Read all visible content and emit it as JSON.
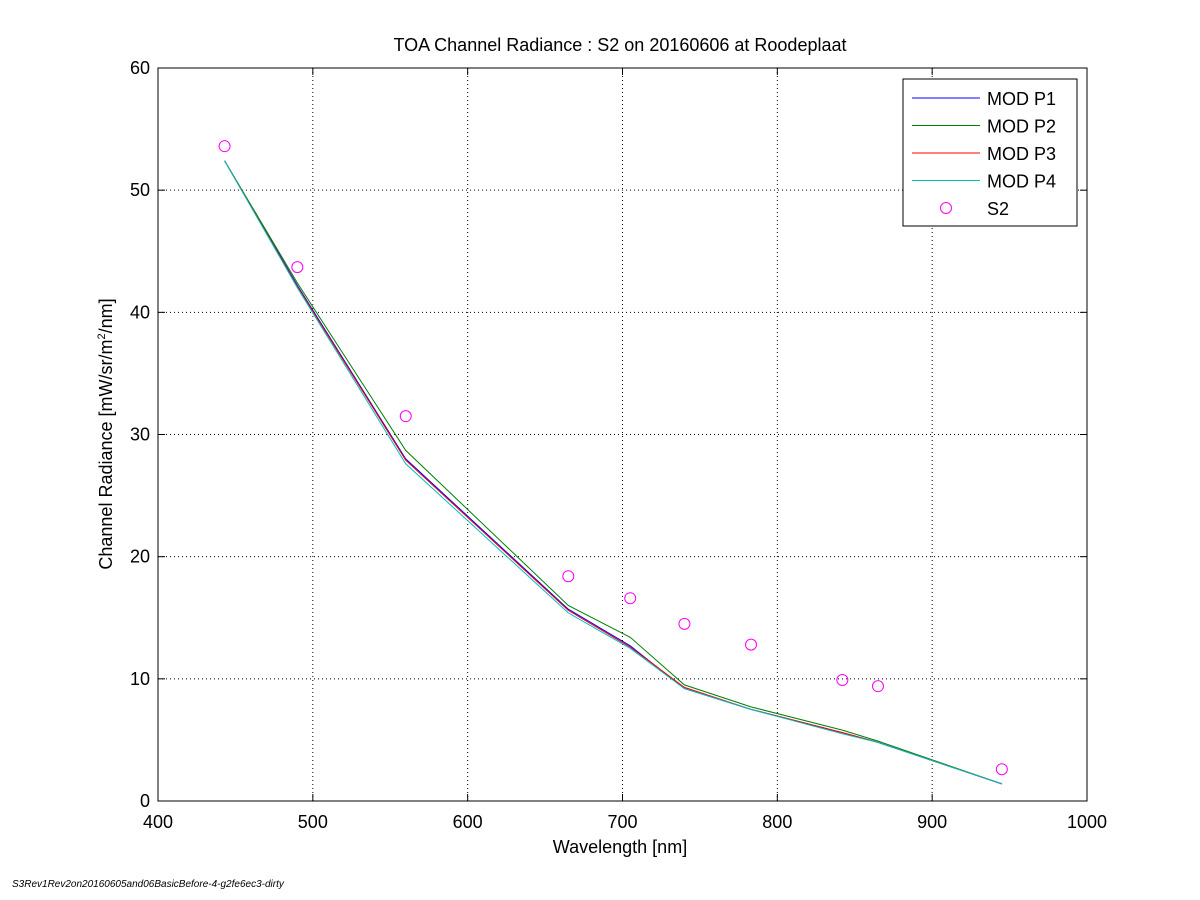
{
  "chart_data": {
    "type": "line",
    "title": "TOA Channel Radiance : S2 on 20160606 at Roodeplaat",
    "xlabel": "Wavelength [nm]",
    "ylabel_main": "Channel Radiance [mW/sr/m",
    "ylabel_sup": "2",
    "ylabel_tail": "/nm]",
    "xlim": [
      400,
      1000
    ],
    "ylim": [
      0,
      60
    ],
    "xticks": [
      400,
      500,
      600,
      700,
      800,
      900,
      1000
    ],
    "yticks": [
      0,
      10,
      20,
      30,
      40,
      50,
      60
    ],
    "grid": true,
    "legend_position": "top-right",
    "series": [
      {
        "name": "MOD P1",
        "color": "#0000ff",
        "kind": "line",
        "x": [
          443,
          490,
          560,
          665,
          705,
          740,
          783,
          842,
          865,
          945
        ],
        "y": [
          52.4,
          42.2,
          28.0,
          15.7,
          12.7,
          9.2,
          7.5,
          5.6,
          4.8,
          1.4
        ]
      },
      {
        "name": "MOD P2",
        "color": "#008000",
        "kind": "line",
        "x": [
          443,
          490,
          560,
          665,
          705,
          740,
          783,
          842,
          865,
          945
        ],
        "y": [
          52.4,
          42.4,
          28.7,
          16.0,
          13.4,
          9.5,
          7.7,
          5.8,
          4.9,
          1.4
        ]
      },
      {
        "name": "MOD P3",
        "color": "#ff0000",
        "kind": "line",
        "x": [
          443,
          490,
          560,
          665,
          705,
          740,
          783,
          842,
          865,
          945
        ],
        "y": [
          52.4,
          42.1,
          27.9,
          15.6,
          12.6,
          9.3,
          7.5,
          5.6,
          4.8,
          1.4
        ]
      },
      {
        "name": "MOD P4",
        "color": "#00bfbf",
        "kind": "line",
        "x": [
          443,
          490,
          560,
          665,
          705,
          740,
          783,
          842,
          865,
          945
        ],
        "y": [
          52.4,
          42.0,
          27.6,
          15.4,
          12.5,
          9.2,
          7.5,
          5.5,
          4.8,
          1.4
        ]
      },
      {
        "name": "S2",
        "color": "#ff00ff",
        "kind": "marker",
        "x": [
          443,
          490,
          560,
          665,
          705,
          740,
          783,
          842,
          865,
          945
        ],
        "y": [
          53.6,
          43.7,
          31.5,
          18.4,
          16.6,
          14.5,
          12.8,
          9.9,
          9.4,
          2.6
        ]
      }
    ]
  },
  "footer_note": "S3Rev1Rev2on20160605and06BasicBefore-4-g2fe6ec3-dirty"
}
